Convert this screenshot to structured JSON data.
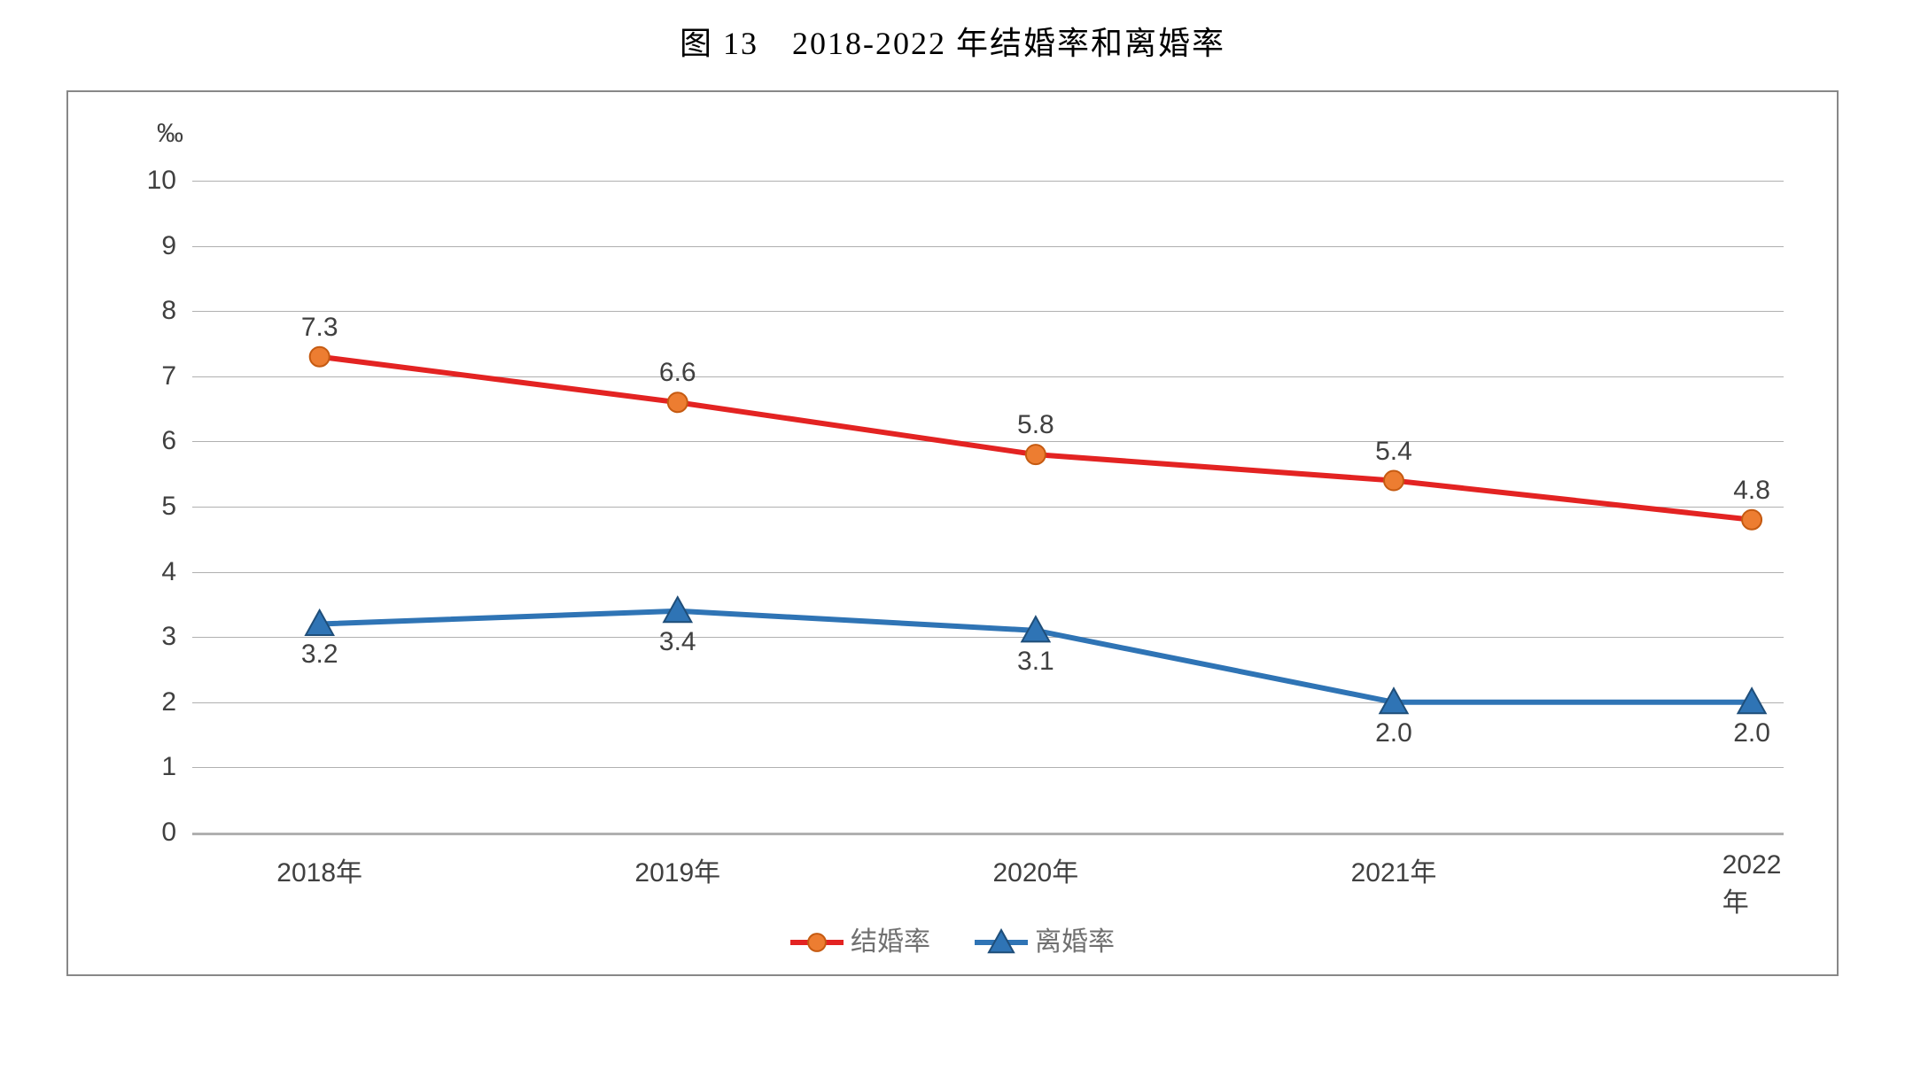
{
  "title": "图 13　2018-2022 年结婚率和离婚率",
  "chart": {
    "type": "line",
    "y_unit_label": "‰",
    "background_color": "#ffffff",
    "border_color": "#888888",
    "grid_color": "#b0b0b0",
    "axis_color": "#b0b0b0",
    "text_color": "#404040",
    "title_fontsize": 36,
    "tick_fontsize": 30,
    "data_label_fontsize": 30,
    "ylim": [
      0,
      10
    ],
    "ytick_step": 1,
    "yticks": [
      "0",
      "1",
      "2",
      "3",
      "4",
      "5",
      "6",
      "7",
      "8",
      "9",
      "10"
    ],
    "categories": [
      "2018年",
      "2019年",
      "2020年",
      "2021年",
      "2022年"
    ],
    "series": [
      {
        "name": "结婚率",
        "color": "#e32322",
        "marker": "circle",
        "marker_fill": "#ed7d31",
        "marker_stroke": "#c55a11",
        "marker_size": 11,
        "line_width": 6,
        "values": [
          7.3,
          6.6,
          5.8,
          5.4,
          4.8
        ],
        "label_position": "above"
      },
      {
        "name": "离婚率",
        "color": "#2f74b5",
        "marker": "triangle",
        "marker_fill": "#2f74b5",
        "marker_stroke": "#1f4e79",
        "marker_size": 13,
        "line_width": 6,
        "values": [
          3.2,
          3.4,
          3.1,
          2.0,
          2.0
        ],
        "label_position": "below"
      }
    ],
    "legend_position": "bottom-center"
  }
}
